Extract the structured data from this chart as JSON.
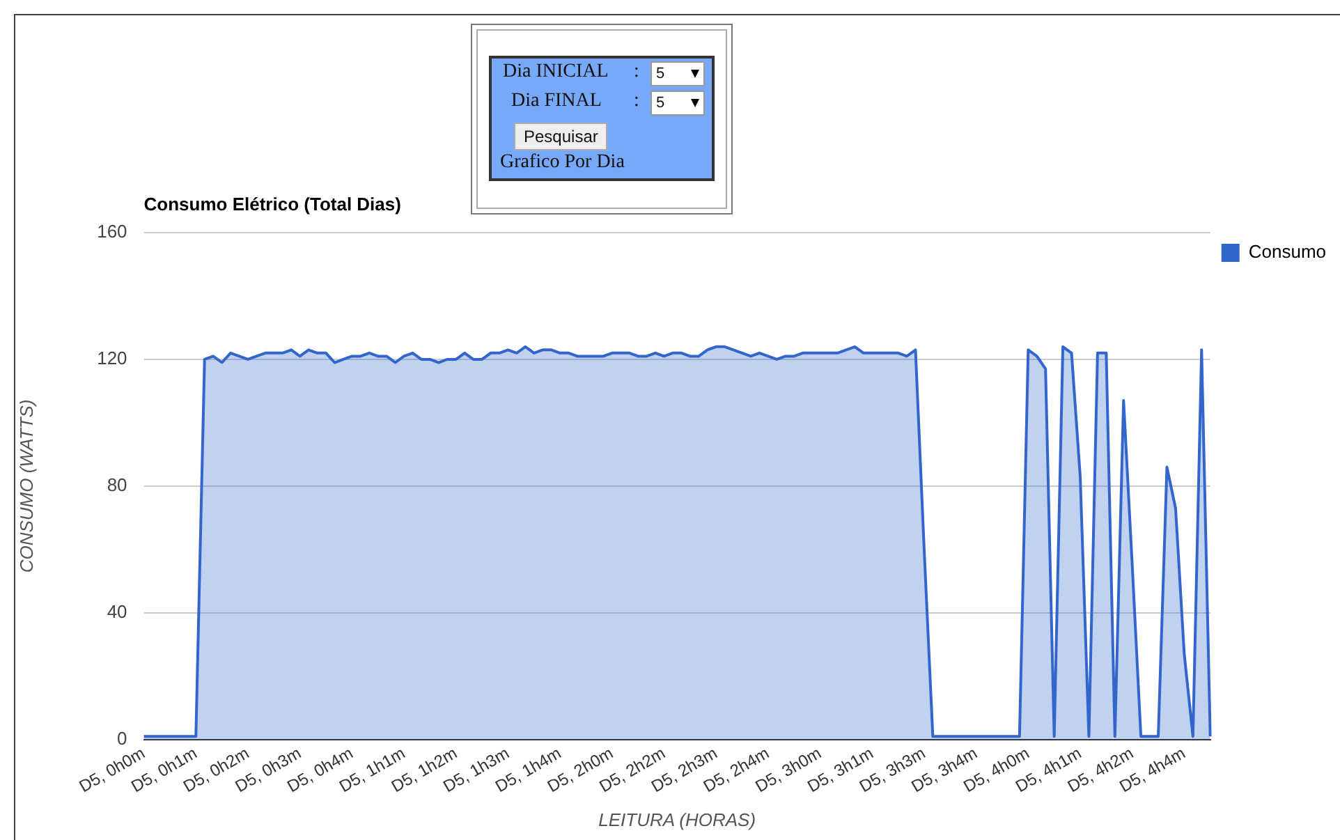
{
  "chart_data": {
    "type": "area",
    "title": "Consumo Elétrico (Total Dias)",
    "xlabel": "LEITURA (HORAS)",
    "ylabel": "CONSUMO (WATTS)",
    "categories": [
      "D5, 0h0m",
      null,
      null,
      null,
      null,
      null,
      "D5, 0h1m",
      null,
      null,
      null,
      null,
      null,
      "D5, 0h2m",
      null,
      null,
      null,
      null,
      null,
      "D5, 0h3m",
      null,
      null,
      null,
      null,
      null,
      "D5, 0h4m",
      null,
      null,
      null,
      null,
      null,
      "D5, 1h1m",
      null,
      null,
      null,
      null,
      null,
      "D5, 1h2m",
      null,
      null,
      null,
      null,
      null,
      "D5, 1h3m",
      null,
      null,
      null,
      null,
      null,
      "D5, 1h4m",
      null,
      null,
      null,
      null,
      null,
      "D5, 2h0m",
      null,
      null,
      null,
      null,
      null,
      "D5, 2h2m",
      null,
      null,
      null,
      null,
      null,
      "D5, 2h3m",
      null,
      null,
      null,
      null,
      null,
      "D5, 2h4m",
      null,
      null,
      null,
      null,
      null,
      "D5, 3h0m",
      null,
      null,
      null,
      null,
      null,
      "D5, 3h1m",
      null,
      null,
      null,
      null,
      null,
      "D5, 3h3m",
      null,
      null,
      null,
      null,
      null,
      "D5, 3h4m",
      null,
      null,
      null,
      null,
      null,
      "D5, 4h0m",
      null,
      null,
      null,
      null,
      null,
      "D5, 4h1m",
      null,
      null,
      null,
      null,
      null,
      "D5, 4h2m",
      null,
      null,
      null,
      null,
      null,
      "D5, 4h4m",
      null,
      null,
      null
    ],
    "series": [
      {
        "name": "Consumo",
        "color": "#3366cc",
        "values": [
          1,
          1,
          1,
          1,
          1,
          1,
          1,
          120,
          121,
          119,
          122,
          121,
          120,
          121,
          122,
          122,
          122,
          123,
          121,
          123,
          122,
          122,
          119,
          120,
          121,
          121,
          122,
          121,
          121,
          119,
          121,
          122,
          120,
          120,
          119,
          120,
          120,
          122,
          120,
          120,
          122,
          122,
          123,
          122,
          124,
          122,
          123,
          123,
          122,
          122,
          121,
          121,
          121,
          121,
          122,
          122,
          122,
          121,
          121,
          122,
          121,
          122,
          122,
          121,
          121,
          123,
          124,
          124,
          123,
          122,
          121,
          122,
          121,
          120,
          121,
          121,
          122,
          122,
          122,
          122,
          122,
          123,
          124,
          122,
          122,
          122,
          122,
          122,
          121,
          123,
          60,
          1,
          1,
          1,
          1,
          1,
          1,
          1,
          1,
          1,
          1,
          1,
          123,
          121,
          117,
          1,
          124,
          122,
          83,
          1,
          122,
          122,
          1,
          107,
          55,
          1,
          1,
          1,
          86,
          73,
          27,
          1,
          123,
          1
        ]
      }
    ],
    "ylim": [
      0,
      160
    ],
    "yticks": [
      0,
      40,
      80,
      120,
      160
    ],
    "grid": "y",
    "legend": "top right",
    "marker": "none",
    "annotations": [
      "Dia INICIAL",
      ":",
      "5",
      "Dia FINAL",
      ":",
      "5",
      "Pesquisar",
      "Grafico Por Dia"
    ]
  }
}
